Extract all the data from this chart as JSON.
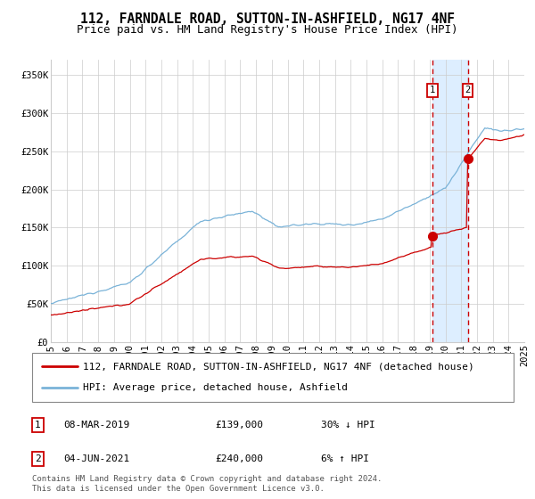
{
  "title1": "112, FARNDALE ROAD, SUTTON-IN-ASHFIELD, NG17 4NF",
  "title2": "Price paid vs. HM Land Registry's House Price Index (HPI)",
  "legend_line1": "112, FARNDALE ROAD, SUTTON-IN-ASHFIELD, NG17 4NF (detached house)",
  "legend_line2": "HPI: Average price, detached house, Ashfield",
  "annotation1_label": "1",
  "annotation1_date": "08-MAR-2019",
  "annotation1_price": "£139,000",
  "annotation1_hpi": "30% ↓ HPI",
  "annotation2_label": "2",
  "annotation2_date": "04-JUN-2021",
  "annotation2_price": "£240,000",
  "annotation2_hpi": "6% ↑ HPI",
  "footer": "Contains HM Land Registry data © Crown copyright and database right 2024.\nThis data is licensed under the Open Government Licence v3.0.",
  "hpi_color": "#7ab3d8",
  "price_color": "#cc0000",
  "marker_color": "#cc0000",
  "dashed_line_color": "#cc0000",
  "shaded_region_color": "#ddeeff",
  "annotation_box_color": "#cc0000",
  "background_color": "#ffffff",
  "grid_color": "#cccccc",
  "ylim": [
    0,
    370000
  ],
  "year_start": 1995,
  "year_end": 2025,
  "purchase1_year": 2019.18,
  "purchase1_value": 139000,
  "purchase2_year": 2021.42,
  "purchase2_value": 240000,
  "title_fontsize": 10.5,
  "subtitle_fontsize": 9,
  "tick_fontsize": 7.5,
  "legend_fontsize": 8,
  "ann_fontsize": 8,
  "footer_fontsize": 6.5
}
